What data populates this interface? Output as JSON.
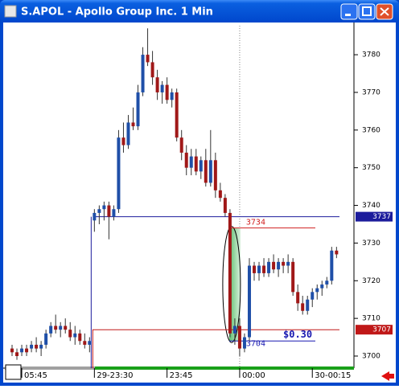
{
  "window": {
    "title": "S.APOL - Apollo Group Inc. 1 Min"
  },
  "chart_data": {
    "type": "candlestick",
    "categories": [
      null,
      null,
      "05:45",
      null,
      null,
      null,
      null,
      null,
      null,
      null,
      null,
      null,
      null,
      null,
      null,
      null,
      null,
      "29-23:30",
      null,
      null,
      null,
      null,
      null,
      null,
      null,
      null,
      null,
      null,
      null,
      null,
      null,
      null,
      "23:45",
      null,
      null,
      null,
      null,
      null,
      null,
      null,
      null,
      null,
      null,
      null,
      null,
      null,
      null,
      "00:00",
      null,
      null,
      null,
      null,
      null,
      null,
      null,
      null,
      null,
      null,
      null,
      null,
      null,
      null,
      "30-00:15",
      null,
      null,
      null,
      null,
      null
    ],
    "open": [
      3702,
      3701,
      3701,
      3702,
      3702,
      3703,
      3702,
      3703,
      3706,
      3708,
      3707,
      3708,
      3707,
      3705,
      3706,
      3704,
      3703,
      3736,
      3738,
      3739,
      3740,
      3737,
      3739,
      3758,
      3756,
      3762,
      3761,
      3770,
      3780,
      3778,
      3774,
      3770,
      3772,
      3768,
      3770,
      3758,
      3754,
      3750,
      3753,
      3749,
      3752,
      3746,
      3752,
      3744,
      3742,
      3738,
      3706,
      3708,
      3702,
      3705,
      3724,
      3722,
      3724,
      3722,
      3725,
      3723,
      3725,
      3724,
      3725,
      3717,
      3714,
      3712,
      3715,
      3717,
      3718,
      3719,
      3720,
      3728
    ],
    "high": [
      3703,
      3702,
      3703,
      3703,
      3704,
      3705,
      3704,
      3707,
      3709,
      3711,
      3709,
      3710,
      3709,
      3708,
      3707,
      3706,
      3705,
      3739,
      3740,
      3741,
      3741,
      3740,
      3760,
      3762,
      3764,
      3766,
      3772,
      3782,
      3787,
      3781,
      3776,
      3773,
      3774,
      3771,
      3771,
      3760,
      3756,
      3755,
      3755,
      3753,
      3755,
      3760,
      3754,
      3746,
      3743,
      3739,
      3710,
      3710,
      3706,
      3726,
      3725,
      3725,
      3726,
      3726,
      3727,
      3726,
      3726,
      3727,
      3726,
      3719,
      3716,
      3716,
      3718,
      3719,
      3720,
      3721,
      3729,
      3729
    ],
    "low": [
      3700,
      3699,
      3700,
      3700,
      3701,
      3701,
      3700,
      3702,
      3705,
      3706,
      3705,
      3706,
      3704,
      3703,
      3703,
      3702,
      3701,
      3733,
      3735,
      3736,
      3731,
      3736,
      3738,
      3754,
      3755,
      3760,
      3760,
      3769,
      3777,
      3772,
      3768,
      3767,
      3767,
      3766,
      3757,
      3752,
      3748,
      3748,
      3748,
      3747,
      3745,
      3745,
      3742,
      3741,
      3737,
      3705,
      3703,
      3700,
      3701,
      3704,
      3720,
      3720,
      3721,
      3721,
      3722,
      3721,
      3722,
      3722,
      3716,
      3712,
      3711,
      3711,
      3713,
      3715,
      3716,
      3718,
      3719,
      3726
    ],
    "close": [
      3701,
      3700,
      3702,
      3701,
      3703,
      3702,
      3703,
      3706,
      3708,
      3707,
      3708,
      3707,
      3705,
      3706,
      3704,
      3703,
      3704,
      3738,
      3739,
      3740,
      3737,
      3739,
      3758,
      3756,
      3762,
      3761,
      3770,
      3780,
      3778,
      3774,
      3770,
      3772,
      3768,
      3770,
      3758,
      3754,
      3750,
      3753,
      3749,
      3752,
      3746,
      3752,
      3744,
      3742,
      3738,
      3706,
      3708,
      3702,
      3705,
      3724,
      3722,
      3724,
      3722,
      3725,
      3723,
      3725,
      3724,
      3725,
      3717,
      3714,
      3712,
      3715,
      3717,
      3718,
      3719,
      3720,
      3728,
      3727
    ],
    "up_color": "#1f4fa8",
    "down_color": "#a01818",
    "ylim": [
      3696.8,
      3787.7
    ],
    "yticks": [
      3700,
      3710,
      3720,
      3730,
      3740,
      3750,
      3760,
      3770,
      3780
    ],
    "levels": [
      {
        "value": 3737,
        "color": "#1c1c9c"
      },
      {
        "value": 3707,
        "color": "#c01818"
      }
    ],
    "annotations": [
      {
        "value": 3734,
        "color": "#d02020"
      },
      {
        "value": 3704,
        "color": "#1818b0"
      }
    ],
    "change_label": "$0.30"
  }
}
